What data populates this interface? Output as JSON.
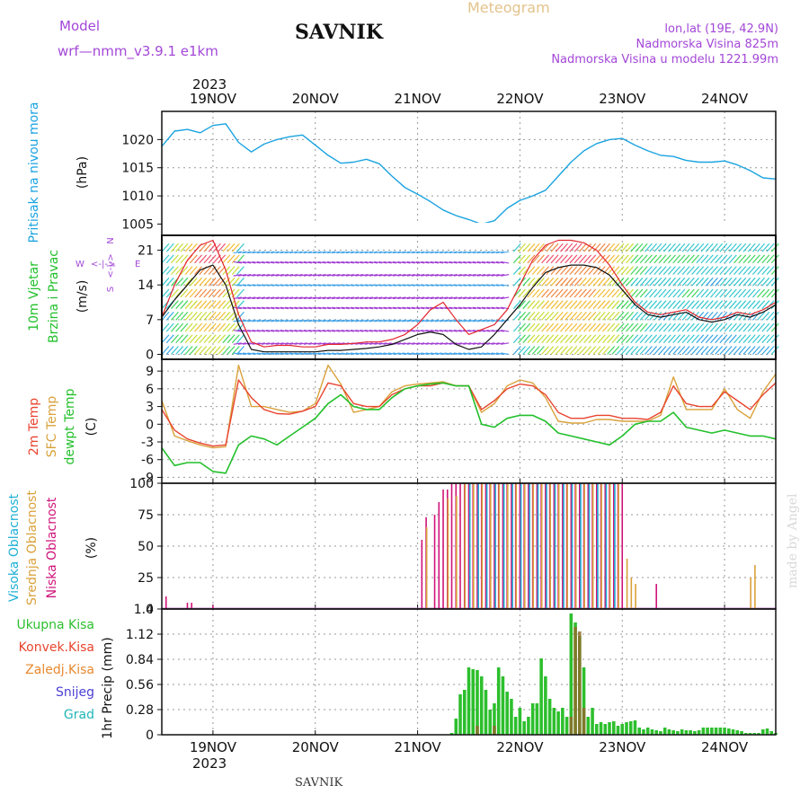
{
  "header": {
    "model_label": "Model",
    "model_name": "wrf—nmm_v3.9.1  e1km",
    "station": "SAVNIK",
    "meteogram": "Meteogram",
    "lonlat": "lon,lat (19E, 42.9N)",
    "height": "Nadmorska Visina 825m",
    "model_height": "Nadmorska Visina u modelu 1221.99m",
    "year_top": "2023",
    "year_bottom": "2023",
    "footer": "SAVNIK",
    "watermark": "made by Angel"
  },
  "days": [
    "19NOV",
    "20NOV",
    "21NOV",
    "22NOV",
    "23NOV",
    "24NOV"
  ],
  "legend": {
    "wind_dirs": [
      "N",
      "<-|->",
      "S",
      "W",
      "E"
    ],
    "precip": [
      "Ukupna Kisa",
      "Konvek.Kisa",
      "Zaledj.Kisa",
      "Snijeg",
      "Grad"
    ]
  },
  "colors": {
    "pressure": "#1aa3e0",
    "wind_speed_a": "#e3262e",
    "wind_speed_b": "#111111",
    "temp2m": "#e8442e",
    "sfc": "#d9a13a",
    "dewpt": "#22c02b",
    "high_cloud": "#1fb0d6",
    "mid_cloud": "#d9a13a",
    "low_cloud": "#d0147a",
    "total_rain": "#2dbf2d",
    "conv_rain": "#e8442e",
    "freezing": "#e8892e",
    "snow": "#4a3fd6",
    "hail": "#22b5b5",
    "purple_label": "#a347d8"
  },
  "chart_data": [
    {
      "type": "line",
      "ylabel": "(hPa)",
      "side_label": "Pritisak na nivou mora",
      "ylim": [
        1003,
        1025
      ],
      "yticks": [
        "1005",
        "1010",
        "1015",
        "1020"
      ],
      "grid": true,
      "x": [
        0,
        3,
        6,
        9,
        12,
        15,
        18,
        21,
        24,
        27,
        30,
        33,
        36,
        39,
        42,
        45,
        48,
        51,
        54,
        57,
        60,
        63,
        66,
        69,
        72,
        75,
        78,
        81,
        84,
        87,
        90,
        93,
        96,
        99,
        102,
        105,
        108,
        111,
        114,
        117,
        120,
        123,
        126,
        129,
        132,
        135,
        138,
        141,
        144
      ],
      "series": [
        {
          "values": [
            1018.8,
            1021.5,
            1021.8,
            1021.2,
            1022.5,
            1022.8,
            1019.5,
            1017.8,
            1019.2,
            1020.0,
            1020.5,
            1020.8,
            1019.0,
            1017.2,
            1015.8,
            1016.0,
            1016.5,
            1015.7,
            1013.5,
            1011.5,
            1010.3,
            1009.0,
            1007.5,
            1006.5,
            1005.8,
            1005.0,
            1005.6,
            1007.8,
            1009.2,
            1010.0,
            1011.0,
            1013.5,
            1016.0,
            1018.0,
            1019.3,
            1020.0,
            1020.2,
            1019.0,
            1018.0,
            1017.2,
            1017.0,
            1016.3,
            1016.0,
            1016.0,
            1016.2,
            1015.5,
            1014.5,
            1013.2,
            1013.0
          ]
        }
      ]
    },
    {
      "type": "line",
      "ylabel": "(m/s)",
      "side_label": [
        "10m Vjetar",
        "Brzina i Pravac"
      ],
      "ylim": [
        -1,
        24
      ],
      "yticks": [
        "0",
        "7",
        "14",
        "21"
      ],
      "grid": true,
      "x": [
        0,
        3,
        6,
        9,
        12,
        15,
        18,
        21,
        24,
        27,
        30,
        33,
        36,
        39,
        42,
        45,
        48,
        51,
        54,
        57,
        60,
        63,
        66,
        69,
        72,
        75,
        78,
        81,
        84,
        87,
        90,
        93,
        96,
        99,
        102,
        105,
        108,
        111,
        114,
        117,
        120,
        123,
        126,
        129,
        132,
        135,
        138,
        141,
        144
      ],
      "series": [
        {
          "values": [
            7.5,
            14.0,
            19.0,
            22.0,
            23.0,
            17.0,
            8.0,
            2.5,
            1.5,
            1.8,
            1.8,
            1.5,
            1.5,
            2.0,
            2.0,
            2.2,
            2.5,
            2.5,
            3.0,
            4.0,
            6.0,
            9.0,
            10.5,
            7.0,
            4.0,
            5.0,
            6.0,
            9.0,
            14.0,
            19.0,
            22.0,
            23.0,
            23.0,
            22.5,
            21.0,
            18.0,
            14.0,
            10.5,
            8.5,
            8.0,
            8.5,
            9.0,
            7.5,
            7.0,
            7.5,
            8.5,
            8.0,
            9.0,
            10.5
          ]
        },
        {
          "values": [
            7.5,
            11.0,
            14.0,
            17.0,
            18.0,
            14.0,
            6.0,
            1.0,
            0.5,
            0.5,
            0.5,
            0.5,
            0.5,
            0.8,
            0.8,
            1.0,
            1.2,
            1.5,
            2.0,
            3.0,
            4.0,
            4.5,
            4.0,
            2.0,
            1.0,
            1.5,
            4.0,
            7.0,
            10.0,
            13.5,
            16.5,
            17.5,
            18.0,
            18.0,
            17.5,
            16.0,
            13.0,
            10.0,
            8.0,
            7.5,
            8.0,
            8.5,
            7.0,
            6.5,
            7.0,
            8.0,
            7.5,
            8.5,
            10.0
          ]
        }
      ]
    },
    {
      "type": "line",
      "ylabel": "(C)",
      "side_label": [
        "2m Temp",
        "SFC Temp",
        "dewpt Temp"
      ],
      "ylim": [
        -10,
        11
      ],
      "yticks": [
        "-9",
        "-6",
        "-3",
        "0",
        "3",
        "6",
        "9"
      ],
      "grid": true,
      "x": [
        0,
        3,
        6,
        9,
        12,
        15,
        18,
        21,
        24,
        27,
        30,
        33,
        36,
        39,
        42,
        45,
        48,
        51,
        54,
        57,
        60,
        63,
        66,
        69,
        72,
        75,
        78,
        81,
        84,
        87,
        90,
        93,
        96,
        99,
        102,
        105,
        108,
        111,
        114,
        117,
        120,
        123,
        126,
        129,
        132,
        135,
        138,
        141,
        144
      ],
      "series": [
        {
          "name": "2m Temp",
          "values": [
            2.5,
            -1.0,
            -2.5,
            -3.2,
            -3.7,
            -3.5,
            7.5,
            4.5,
            2.5,
            1.8,
            1.7,
            2.2,
            3.0,
            7.0,
            6.5,
            3.5,
            3.0,
            3.0,
            5.0,
            6.0,
            6.5,
            6.5,
            7.0,
            6.5,
            6.5,
            2.5,
            4.0,
            6.0,
            6.8,
            6.5,
            5.0,
            2.0,
            1.0,
            1.0,
            1.5,
            1.5,
            1.0,
            1.0,
            0.8,
            2.0,
            6.5,
            3.5,
            3.0,
            3.0,
            5.5,
            4.0,
            2.5,
            5.0,
            7.0
          ]
        },
        {
          "name": "SFC Temp",
          "values": [
            4.0,
            -2.0,
            -2.8,
            -3.5,
            -4.0,
            -3.8,
            10.0,
            3.0,
            3.0,
            2.5,
            2.0,
            2.2,
            3.5,
            10.0,
            6.8,
            2.0,
            2.5,
            3.0,
            5.5,
            6.5,
            6.8,
            7.0,
            7.2,
            6.5,
            6.5,
            2.0,
            3.5,
            6.5,
            7.5,
            7.0,
            4.5,
            0.5,
            0.2,
            0.2,
            0.8,
            0.8,
            0.5,
            0.5,
            0.5,
            1.5,
            8.0,
            2.5,
            2.5,
            2.5,
            6.0,
            2.5,
            1.0,
            5.5,
            8.5
          ]
        },
        {
          "name": "dewpt Temp",
          "values": [
            -4.0,
            -7.0,
            -6.5,
            -6.5,
            -8.0,
            -8.3,
            -3.5,
            -2.0,
            -2.5,
            -3.5,
            -2.0,
            -0.5,
            1.0,
            3.5,
            5.0,
            3.0,
            2.5,
            2.5,
            4.5,
            6.0,
            6.5,
            6.8,
            7.0,
            6.5,
            6.5,
            0.0,
            -0.5,
            1.0,
            1.5,
            1.5,
            0.5,
            -1.5,
            -2.0,
            -2.5,
            -3.0,
            -3.5,
            -2.0,
            0.0,
            0.5,
            0.5,
            2.0,
            -0.5,
            -1.0,
            -1.5,
            -1.0,
            -1.5,
            -2.0,
            -2.0,
            -2.5
          ]
        }
      ]
    },
    {
      "type": "bar",
      "ylabel": "(%)",
      "side_label": [
        "Visoka Oblacnost",
        "Srednja Oblacnost",
        "Niska Oblacnost"
      ],
      "ylim": [
        0,
        100
      ],
      "yticks": [
        "0",
        "25",
        "50",
        "75",
        "100"
      ],
      "grid": true,
      "series": [
        {
          "name": "Niska Oblacnost",
          "hours": [
            1,
            6,
            7,
            12,
            61,
            62,
            64,
            65,
            66,
            67,
            68,
            69,
            70,
            71,
            72,
            73,
            74,
            75,
            76,
            77,
            78,
            79,
            80,
            81,
            82,
            83,
            84,
            85,
            86,
            87,
            88,
            89,
            90,
            91,
            92,
            93,
            94,
            95,
            96,
            97,
            98,
            99,
            100,
            101,
            102,
            103,
            104,
            105,
            106,
            107,
            108,
            116
          ],
          "values": [
            10,
            5,
            5,
            3,
            55,
            73,
            75,
            85,
            95,
            95,
            100,
            100,
            100,
            100,
            100,
            100,
            100,
            100,
            100,
            100,
            100,
            100,
            100,
            100,
            100,
            100,
            100,
            100,
            100,
            100,
            100,
            100,
            100,
            100,
            100,
            100,
            100,
            100,
            100,
            100,
            100,
            100,
            100,
            100,
            100,
            100,
            100,
            100,
            100,
            100,
            100,
            20
          ]
        },
        {
          "name": "Srednja Oblacnost",
          "hours": [
            62,
            67,
            69,
            71,
            73,
            75,
            77,
            79,
            81,
            83,
            85,
            87,
            89,
            91,
            93,
            95,
            97,
            99,
            101,
            103,
            105,
            107,
            109,
            110,
            111,
            138,
            139
          ],
          "values": [
            65,
            88,
            90,
            100,
            100,
            100,
            100,
            100,
            100,
            100,
            100,
            100,
            100,
            100,
            100,
            100,
            100,
            100,
            100,
            100,
            100,
            100,
            40,
            25,
            20,
            25,
            35
          ]
        },
        {
          "name": "Visoka Oblacnost",
          "hours": [
            72,
            74,
            76,
            78,
            80,
            82,
            84,
            86,
            88,
            90,
            92,
            94,
            96,
            98,
            100,
            102,
            104,
            106
          ],
          "values": [
            100,
            100,
            100,
            100,
            100,
            100,
            100,
            100,
            100,
            100,
            100,
            100,
            100,
            100,
            100,
            100,
            100,
            100
          ]
        }
      ]
    },
    {
      "type": "bar",
      "ylabel": "1hr Precip (mm)",
      "ylim": [
        0,
        1.4
      ],
      "yticks": [
        "0",
        "0.28",
        "0.56",
        "0.84",
        "1.12",
        "1.4"
      ],
      "grid": true,
      "series": [
        {
          "name": "Ukupna Kisa",
          "hours": [
            68,
            69,
            70,
            71,
            72,
            73,
            74,
            75,
            76,
            77,
            78,
            79,
            80,
            81,
            82,
            83,
            84,
            85,
            86,
            87,
            88,
            89,
            90,
            91,
            92,
            93,
            94,
            95,
            96,
            97,
            98,
            99,
            100,
            101,
            102,
            103,
            104,
            105,
            106,
            107,
            108,
            109,
            110,
            111,
            112,
            113,
            114,
            115,
            116,
            117,
            118,
            119,
            120,
            121,
            122,
            123,
            124,
            125,
            126,
            127,
            128,
            129,
            130,
            131,
            132,
            133,
            134,
            135,
            136,
            137,
            138,
            139,
            140,
            141,
            142,
            143,
            144
          ],
          "values": [
            0.02,
            0.18,
            0.45,
            0.5,
            0.75,
            0.73,
            0.72,
            0.65,
            0.5,
            0.28,
            0.35,
            0.75,
            0.65,
            0.48,
            0.4,
            0.2,
            0.3,
            0.15,
            0.2,
            0.35,
            0.35,
            0.85,
            0.65,
            0.4,
            0.3,
            0.26,
            0.3,
            0.2,
            1.35,
            1.25,
            1.1,
            0.75,
            0.2,
            0.3,
            0.12,
            0.14,
            0.12,
            0.14,
            0.15,
            0.1,
            0.12,
            0.14,
            0.15,
            0.16,
            0.08,
            0.06,
            0.08,
            0.06,
            0.05,
            0.04,
            0.08,
            0.06,
            0.05,
            0.04,
            0.06,
            0.05,
            0.05,
            0.04,
            0.05,
            0.08,
            0.08,
            0.08,
            0.08,
            0.08,
            0.08,
            0.07,
            0.06,
            0.05,
            0.04,
            0.02,
            0.02,
            0.02,
            0.02,
            0.06,
            0.07,
            0.04,
            0.02
          ]
        },
        {
          "name": "Konvek.Kisa",
          "hours": [
            74,
            78,
            96,
            97,
            98,
            99
          ],
          "values": [
            0.1,
            0.1,
            0.2,
            1.2,
            1.15,
            0.3
          ]
        },
        {
          "name": "Zaledj.Kisa",
          "hours": [],
          "values": []
        },
        {
          "name": "Snijeg",
          "hours": [],
          "values": []
        },
        {
          "name": "Grad",
          "hours": [],
          "values": []
        }
      ]
    }
  ]
}
